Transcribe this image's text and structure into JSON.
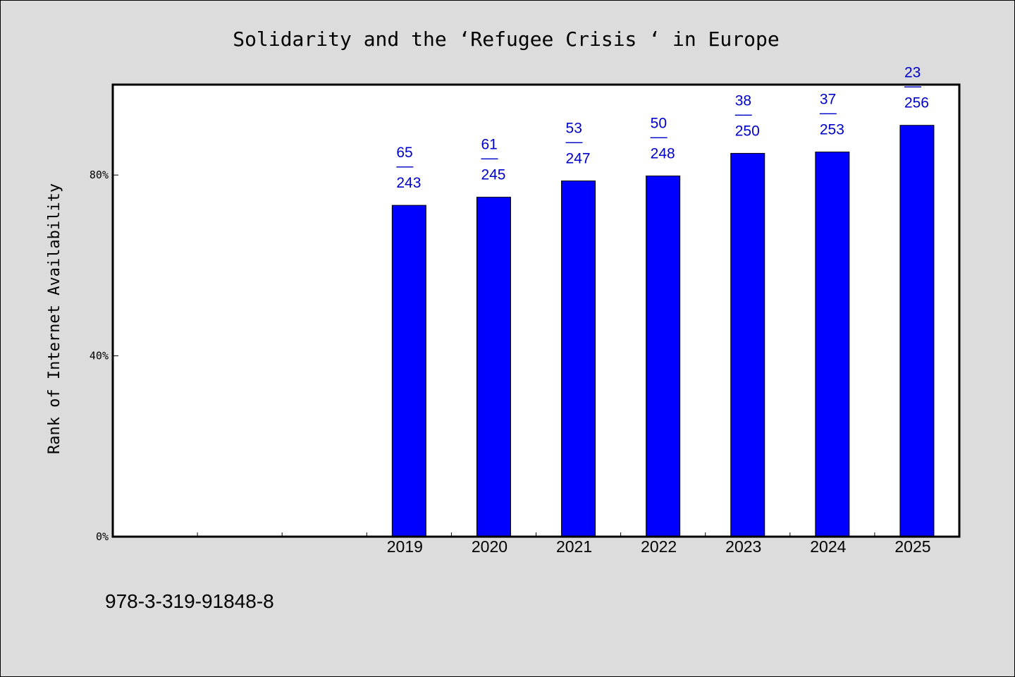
{
  "chart_data": {
    "type": "bar",
    "title": "Solidarity and the  ‘Refugee Crisis ‘ in Europe",
    "ylabel": "Rank of Internet Availability",
    "xlabel": "",
    "ylim": [
      0,
      100
    ],
    "y_ticks": [
      "0%",
      "40%",
      "80%"
    ],
    "y_tick_values": [
      0,
      40,
      80
    ],
    "categories": [
      "2019",
      "2020",
      "2021",
      "2022",
      "2023",
      "2024",
      "2025"
    ],
    "values": [
      73.3,
      75.1,
      78.7,
      79.8,
      84.8,
      85.1,
      91.0
    ],
    "labels": [
      {
        "top": "65",
        "sep": "——",
        "bottom": "243"
      },
      {
        "top": "61",
        "sep": "——",
        "bottom": "245"
      },
      {
        "top": "53",
        "sep": "——",
        "bottom": "247"
      },
      {
        "top": "50",
        "sep": "——",
        "bottom": "248"
      },
      {
        "top": "38",
        "sep": "——",
        "bottom": "250"
      },
      {
        "top": "37",
        "sep": "——",
        "bottom": "253"
      },
      {
        "top": "23",
        "sep": "——",
        "bottom": "256"
      }
    ],
    "bar_color": "#0000ff",
    "label_color": "#0000cc",
    "background": "#dcdcdc",
    "plot_background": "#ffffff",
    "grid": false,
    "legend": "none"
  },
  "footer": {
    "isbn": "978-3-319-91848-8"
  }
}
